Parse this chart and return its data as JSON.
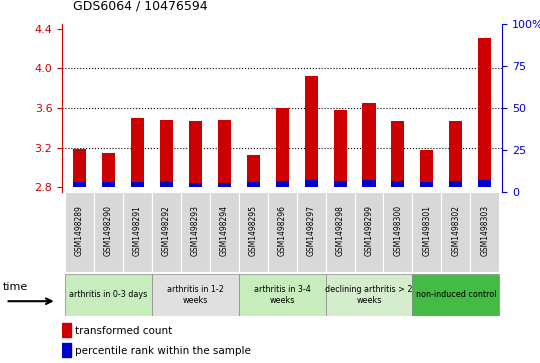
{
  "title": "GDS6064 / 10476594",
  "samples": [
    "GSM1498289",
    "GSM1498290",
    "GSM1498291",
    "GSM1498292",
    "GSM1498293",
    "GSM1498294",
    "GSM1498295",
    "GSM1498296",
    "GSM1498297",
    "GSM1498298",
    "GSM1498299",
    "GSM1498300",
    "GSM1498301",
    "GSM1498302",
    "GSM1498303"
  ],
  "red_values": [
    3.19,
    3.15,
    3.5,
    3.48,
    3.47,
    3.48,
    3.13,
    3.6,
    3.92,
    3.58,
    3.65,
    3.47,
    3.18,
    3.47,
    4.3
  ],
  "blue_values": [
    0.05,
    0.05,
    0.05,
    0.06,
    0.04,
    0.04,
    0.05,
    0.06,
    0.07,
    0.06,
    0.07,
    0.06,
    0.05,
    0.06,
    0.07
  ],
  "base_value": 2.8,
  "ylim_left": [
    2.75,
    4.45
  ],
  "ylim_right": [
    0,
    100
  ],
  "yticks_left": [
    2.8,
    3.2,
    3.6,
    4.0,
    4.4
  ],
  "yticks_right": [
    0,
    25,
    50,
    75,
    100
  ],
  "groups": [
    {
      "label": "arthritis in 0-3 days",
      "start": 0,
      "end": 3,
      "color": "#c8edbc"
    },
    {
      "label": "arthritis in 1-2\nweeks",
      "start": 3,
      "end": 6,
      "color": "#e0e0e0"
    },
    {
      "label": "arthritis in 3-4\nweeks",
      "start": 6,
      "end": 9,
      "color": "#c8edbc"
    },
    {
      "label": "declining arthritis > 2\nweeks",
      "start": 9,
      "end": 12,
      "color": "#d4edcc"
    },
    {
      "label": "non-induced control",
      "start": 12,
      "end": 15,
      "color": "#44bb44"
    }
  ],
  "red_color": "#cc0000",
  "blue_color": "#0000cc",
  "bar_width": 0.45,
  "grid_color": "#000000",
  "left_axis_color": "#cc0000",
  "right_axis_color": "#0000cc",
  "legend_red": "transformed count",
  "legend_blue": "percentile rank within the sample",
  "dotted_lines": [
    3.2,
    3.6,
    4.0
  ],
  "fig_width": 5.4,
  "fig_height": 3.63
}
